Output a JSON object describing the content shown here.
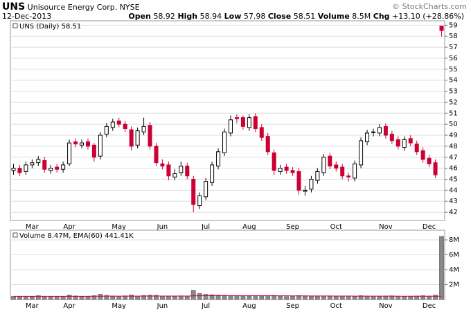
{
  "header": {
    "ticker": "UNS",
    "company": "Unisource Energy Corp.",
    "exchange": "NYSE",
    "date": "12-Dec-2013",
    "credit": "© StockCharts.com",
    "open_label": "Open",
    "high_label": "High",
    "low_label": "Low",
    "close_label": "Close",
    "volume_label": "Volume",
    "volume": "8.5M",
    "chg_label": "Chg",
    "chg": "+13.10 (+28.86%)"
  },
  "chart_data": [
    {
      "type": "candlestick",
      "legend": "UNS (Daily) 58.51",
      "categories": [
        null,
        null,
        null,
        "Mar",
        null,
        null,
        null,
        null,
        null,
        "Apr",
        null,
        null,
        null,
        null,
        null,
        null,
        null,
        "May",
        null,
        null,
        null,
        null,
        null,
        null,
        "Jun",
        null,
        null,
        null,
        null,
        null,
        null,
        "Jul",
        null,
        null,
        null,
        null,
        null,
        null,
        "Aug",
        null,
        null,
        null,
        null,
        null,
        null,
        "Sep",
        null,
        null,
        null,
        null,
        null,
        null,
        "Oct",
        null,
        null,
        null,
        null,
        null,
        null,
        null,
        "Nov",
        null,
        null,
        null,
        null,
        null,
        null,
        "Dec",
        null,
        null
      ],
      "open": [
        45.8,
        46.0,
        45.7,
        46.3,
        46.5,
        46.7,
        45.8,
        46.1,
        45.9,
        46.4,
        48.4,
        48.1,
        48.4,
        48.1,
        47.1,
        49.1,
        49.7,
        50.3,
        50.0,
        49.5,
        48.1,
        49.3,
        49.9,
        48.0,
        46.4,
        46.3,
        45.2,
        45.6,
        46.2,
        45.0,
        42.6,
        43.4,
        44.7,
        46.2,
        47.4,
        49.2,
        50.6,
        50.6,
        49.7,
        50.7,
        49.7,
        48.9,
        47.4,
        45.7,
        46.1,
        45.8,
        45.7,
        43.9,
        44.1,
        44.9,
        45.6,
        47.1,
        46.3,
        46.1,
        45.3,
        45.1,
        46.3,
        48.4,
        49.3,
        49.2,
        49.8,
        49.1,
        48.6,
        47.9,
        48.7,
        48.2,
        47.6,
        46.9,
        46.5,
        58.92
      ],
      "high": [
        46.4,
        46.3,
        46.6,
        46.8,
        47.1,
        47.0,
        46.3,
        46.4,
        46.6,
        48.6,
        48.7,
        48.6,
        48.7,
        48.3,
        49.3,
        50.1,
        50.5,
        50.6,
        50.3,
        49.8,
        49.7,
        50.6,
        50.2,
        48.3,
        46.8,
        46.6,
        45.9,
        46.6,
        46.5,
        45.3,
        43.8,
        45.1,
        46.6,
        47.8,
        49.6,
        50.8,
        50.9,
        50.8,
        50.9,
        51.0,
        50.0,
        49.2,
        47.7,
        46.3,
        46.4,
        46.1,
        46.0,
        44.4,
        45.3,
        46.0,
        47.3,
        47.4,
        46.6,
        46.4,
        45.6,
        46.7,
        48.8,
        49.5,
        49.6,
        50.0,
        50.1,
        49.4,
        48.9,
        48.9,
        49.0,
        48.5,
        47.9,
        47.2,
        46.8,
        58.94
      ],
      "low": [
        45.4,
        45.3,
        45.4,
        46.0,
        46.2,
        45.6,
        45.5,
        45.6,
        45.6,
        46.2,
        47.9,
        47.8,
        47.7,
        46.6,
        46.8,
        48.8,
        49.4,
        49.7,
        49.3,
        47.6,
        47.8,
        49.0,
        47.7,
        46.2,
        45.9,
        44.9,
        44.9,
        45.3,
        45.0,
        42.0,
        42.3,
        43.1,
        44.4,
        45.9,
        47.1,
        48.9,
        50.1,
        49.5,
        49.4,
        49.3,
        48.5,
        47.2,
        45.4,
        45.4,
        45.5,
        45.3,
        43.6,
        43.5,
        43.8,
        44.6,
        45.3,
        45.9,
        45.7,
        45.0,
        44.8,
        44.8,
        46.0,
        48.1,
        48.9,
        48.9,
        48.7,
        48.2,
        47.7,
        47.6,
        48.0,
        47.2,
        46.5,
        46.1,
        45.1,
        57.98
      ],
      "close": [
        46.0,
        45.6,
        46.3,
        46.5,
        46.8,
        45.9,
        46.0,
        45.9,
        46.3,
        48.3,
        48.2,
        48.3,
        48.0,
        47.0,
        49.0,
        49.8,
        50.2,
        50.0,
        49.6,
        48.0,
        49.4,
        49.8,
        48.0,
        46.5,
        46.2,
        45.3,
        45.5,
        46.2,
        45.3,
        42.7,
        43.5,
        44.8,
        46.3,
        47.5,
        49.3,
        50.4,
        50.5,
        49.8,
        50.6,
        49.6,
        48.8,
        47.5,
        45.8,
        46.0,
        45.8,
        45.6,
        44.0,
        44.0,
        45.0,
        45.7,
        47.0,
        46.2,
        46.0,
        45.3,
        45.2,
        46.4,
        48.5,
        49.2,
        49.3,
        49.7,
        49.0,
        48.5,
        48.0,
        48.6,
        48.3,
        47.5,
        46.8,
        46.4,
        45.4,
        58.51
      ],
      "up_color": "#000000",
      "down_color": "#cc0033",
      "ylim": [
        41.25,
        59.4
      ],
      "yticks": [
        42,
        43,
        44,
        45,
        46,
        47,
        48,
        49,
        50,
        51,
        52,
        53,
        54,
        55,
        56,
        57,
        58,
        59
      ],
      "grid": true
    },
    {
      "type": "bar",
      "legend": "Volume 8.47M, EMA(60) 441.41K",
      "categories": [
        null,
        null,
        null,
        "Mar",
        null,
        null,
        null,
        null,
        null,
        "Apr",
        null,
        null,
        null,
        null,
        null,
        null,
        null,
        "May",
        null,
        null,
        null,
        null,
        null,
        null,
        "Jun",
        null,
        null,
        null,
        null,
        null,
        null,
        "Jul",
        null,
        null,
        null,
        null,
        null,
        null,
        "Aug",
        null,
        null,
        null,
        null,
        null,
        null,
        "Sep",
        null,
        null,
        null,
        null,
        null,
        null,
        "Oct",
        null,
        null,
        null,
        null,
        null,
        null,
        null,
        "Nov",
        null,
        null,
        null,
        null,
        null,
        null,
        "Dec",
        null,
        null
      ],
      "values": [
        420000,
        380000,
        450000,
        400000,
        520000,
        360000,
        410000,
        390000,
        430000,
        610000,
        480000,
        400000,
        450000,
        520000,
        700000,
        560000,
        480000,
        430000,
        500000,
        620000,
        460000,
        540000,
        600000,
        580000,
        450000,
        480000,
        420000,
        500000,
        460000,
        1250000,
        820000,
        700000,
        650000,
        600000,
        580000,
        520000,
        480000,
        430000,
        450000,
        500000,
        470000,
        520000,
        560000,
        430000,
        400000,
        420000,
        530000,
        460000,
        440000,
        480000,
        450000,
        420000,
        410000,
        440000,
        470000,
        430000,
        520000,
        480000,
        450000,
        430000,
        470000,
        500000,
        460000,
        420000,
        450000,
        480000,
        520000,
        470000,
        600000,
        8470000
      ],
      "ema": [
        430000,
        428000,
        429000,
        428000,
        431000,
        429000,
        429000,
        428000,
        428000,
        434000,
        435000,
        434000,
        435000,
        437000,
        445000,
        449000,
        450000,
        450000,
        452000,
        457000,
        457000,
        460000,
        464000,
        468000,
        468000,
        468000,
        467000,
        468000,
        468000,
        494000,
        505000,
        512000,
        517000,
        520000,
        522000,
        522000,
        521000,
        518000,
        516000,
        514000,
        512000,
        508000,
        505000,
        500000,
        496000,
        492000,
        489000,
        485000,
        482000,
        478000,
        475000,
        471000,
        468000,
        465000,
        462000,
        459000,
        457000,
        454000,
        452000,
        450000,
        449000,
        448000,
        447000,
        445000,
        444000,
        443000,
        443000,
        442000,
        441000,
        441410
      ],
      "color": "#888888",
      "ema_color": "#cc0033",
      "ylim": [
        0,
        9300000
      ],
      "yticks": [
        {
          "value": 2000000,
          "label": "2M"
        },
        {
          "value": 4000000,
          "label": "4M"
        },
        {
          "value": 6000000,
          "label": "6M"
        },
        {
          "value": 8000000,
          "label": "8M"
        }
      ],
      "grid": true
    }
  ]
}
